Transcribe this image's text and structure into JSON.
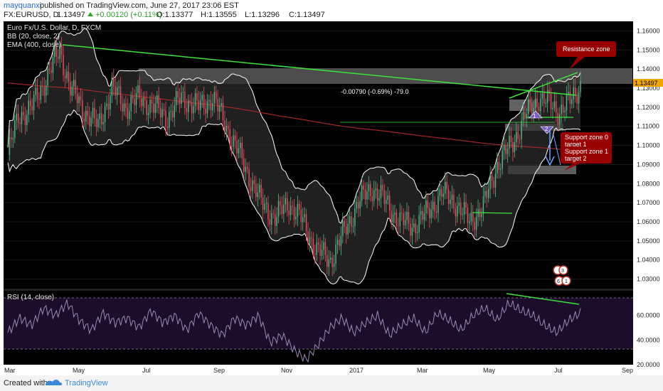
{
  "header": {
    "user": "mayquanxi",
    "published": "published on TradingView.com, June 27, 2017 23:06 EST",
    "symbol": "FX:EURUSD, D",
    "last": "1.13497",
    "change": "+0.00120 (+0.11%)",
    "open": "O:1.13377",
    "high": "H:1.13555",
    "low": "L:1.13296",
    "close": "C:1.13497"
  },
  "legend": {
    "instrument": "Euro Fx/U.S. Dollar, D, FXCM",
    "bb": "BB (20, close, 2)",
    "ema": "EMA (400, close)",
    "rsi": "RSI (14, close)"
  },
  "annotations": {
    "resistance": "Resistance zone",
    "measure": "-0.00790 (-0.69%) -79.0",
    "support0": "Support zone 0",
    "target1": "target 1",
    "support1": "Support zone 1",
    "target2": "target 2",
    "wave1": "1",
    "wave2": "2",
    "circle3": "3",
    "circle4": "4",
    "circle6": "6",
    "circle1": "1"
  },
  "footer": {
    "created": "Created with",
    "brand": "TradingView"
  },
  "colors": {
    "candle_up": "#53b987",
    "candle_down": "#eb4d5c",
    "bollinger": "#ffffff",
    "ema": "#a02828",
    "trendline": "#3ee23e",
    "rsi": "#9b8ab8",
    "annotation": "#990000",
    "price_tag": "#f0a800",
    "background": "#000000"
  },
  "chart_data": [
    {
      "type": "candlestick",
      "ylim": [
        1.025,
        1.165
      ],
      "y_ticks": [
        "1.16000",
        "1.15000",
        "1.14000",
        "1.13000",
        "1.12000",
        "1.11000",
        "1.10000",
        "1.09000",
        "1.08000",
        "1.07000",
        "1.06000",
        "1.05000",
        "1.04000",
        "1.03000"
      ],
      "x_ticks": [
        "Mar",
        "May",
        "Jul",
        "Sep",
        "Nov",
        "2017",
        "Mar",
        "May",
        "Jul",
        "Sep"
      ],
      "last_price": 1.13497,
      "close_path": [
        [
          0,
          1.095
        ],
        [
          6,
          1.115
        ],
        [
          14,
          1.12
        ],
        [
          22,
          1.135
        ],
        [
          30,
          1.15
        ],
        [
          36,
          1.13
        ],
        [
          44,
          1.118
        ],
        [
          52,
          1.11
        ],
        [
          60,
          1.13
        ],
        [
          68,
          1.12
        ],
        [
          76,
          1.125
        ],
        [
          84,
          1.12
        ],
        [
          92,
          1.115
        ],
        [
          100,
          1.125
        ],
        [
          110,
          1.12
        ],
        [
          118,
          1.125
        ],
        [
          126,
          1.11
        ],
        [
          136,
          1.09
        ],
        [
          146,
          1.07
        ],
        [
          154,
          1.062
        ],
        [
          162,
          1.07
        ],
        [
          170,
          1.06
        ],
        [
          178,
          1.045
        ],
        [
          186,
          1.04
        ],
        [
          194,
          1.055
        ],
        [
          202,
          1.07
        ],
        [
          210,
          1.078
        ],
        [
          218,
          1.07
        ],
        [
          226,
          1.06
        ],
        [
          234,
          1.058
        ],
        [
          242,
          1.065
        ],
        [
          250,
          1.075
        ],
        [
          258,
          1.07
        ],
        [
          266,
          1.06
        ],
        [
          274,
          1.068
        ],
        [
          282,
          1.09
        ],
        [
          290,
          1.1
        ],
        [
          298,
          1.115
        ],
        [
          306,
          1.125
        ],
        [
          312,
          1.122
        ],
        [
          318,
          1.118
        ],
        [
          324,
          1.123
        ],
        [
          330,
          1.132
        ]
      ],
      "resistance_zone": [
        1.1365,
        1.1425
      ],
      "support_zone_0": [
        1.109,
        1.1115
      ],
      "support_zone_1": [
        1.0855,
        1.0885
      ]
    },
    {
      "type": "line",
      "name": "RSI (14, close)",
      "ylim": [
        20,
        80
      ],
      "y_ticks": [
        "60.0000",
        "40.0000",
        "20.0000"
      ],
      "bands": [
        70,
        30
      ],
      "values": [
        46,
        58,
        52,
        66,
        60,
        70,
        56,
        48,
        62,
        54,
        58,
        50,
        64,
        54,
        60,
        48,
        62,
        52,
        44,
        58,
        52,
        60,
        38,
        44,
        32,
        24,
        36,
        50,
        58,
        46,
        54,
        60,
        44,
        52,
        58,
        46,
        62,
        56,
        48,
        60,
        66,
        56,
        70,
        64,
        60,
        52,
        46,
        56,
        62
      ]
    }
  ]
}
